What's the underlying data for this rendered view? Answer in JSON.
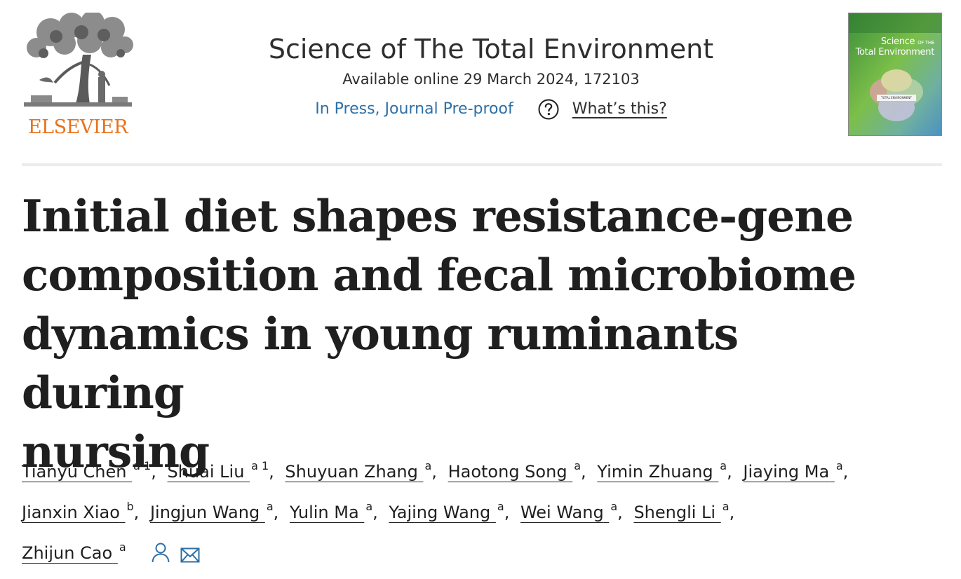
{
  "publisher": {
    "logo_text": "ELSEVIER",
    "logo_color": "#e9711c"
  },
  "journal": {
    "title": "Science of The Total Environment",
    "availability": "Available online 29 March 2024, 172103",
    "status": "In Press, Journal Pre-proof",
    "help_label": "What’s this?",
    "link_color": "#2e6fa6"
  },
  "cover": {
    "title_line1": "Science",
    "title_small": "OF THE",
    "title_line2": "Total Environment",
    "banner_text": "TOTAL ENVIRONMENT"
  },
  "article": {
    "title_lines": [
      "Initial diet shapes resistance-gene",
      "composition and fecal microbiome",
      "dynamics in young ruminants during",
      "nursing"
    ]
  },
  "authors": [
    {
      "name": "Tianyu Chen",
      "sup": "a 1",
      "sep": ","
    },
    {
      "name": "Shuai Liu",
      "sup": "a 1",
      "sep": ","
    },
    {
      "name": "Shuyuan Zhang",
      "sup": "a",
      "sep": ","
    },
    {
      "name": "Haotong Song",
      "sup": "a",
      "sep": ","
    },
    {
      "name": "Yimin Zhuang",
      "sup": "a",
      "sep": ","
    },
    {
      "name": "Jiaying Ma",
      "sup": "a",
      "sep": ","
    },
    {
      "name": "Jianxin Xiao",
      "sup": "b",
      "sep": ","
    },
    {
      "name": "Jingjun Wang",
      "sup": "a",
      "sep": ","
    },
    {
      "name": "Yulin Ma",
      "sup": "a",
      "sep": ","
    },
    {
      "name": "Yajing Wang",
      "sup": "a",
      "sep": ","
    },
    {
      "name": "Wei Wang",
      "sup": "a",
      "sep": ","
    },
    {
      "name": "Shengli Li",
      "sup": "a",
      "sep": ","
    },
    {
      "name": "Zhijun Cao",
      "sup": "a",
      "sep": ""
    }
  ],
  "icons": {
    "help": "question-circle-icon",
    "author_profile": "person-icon",
    "email": "envelope-icon",
    "icon_color": "#2e6fa6"
  }
}
